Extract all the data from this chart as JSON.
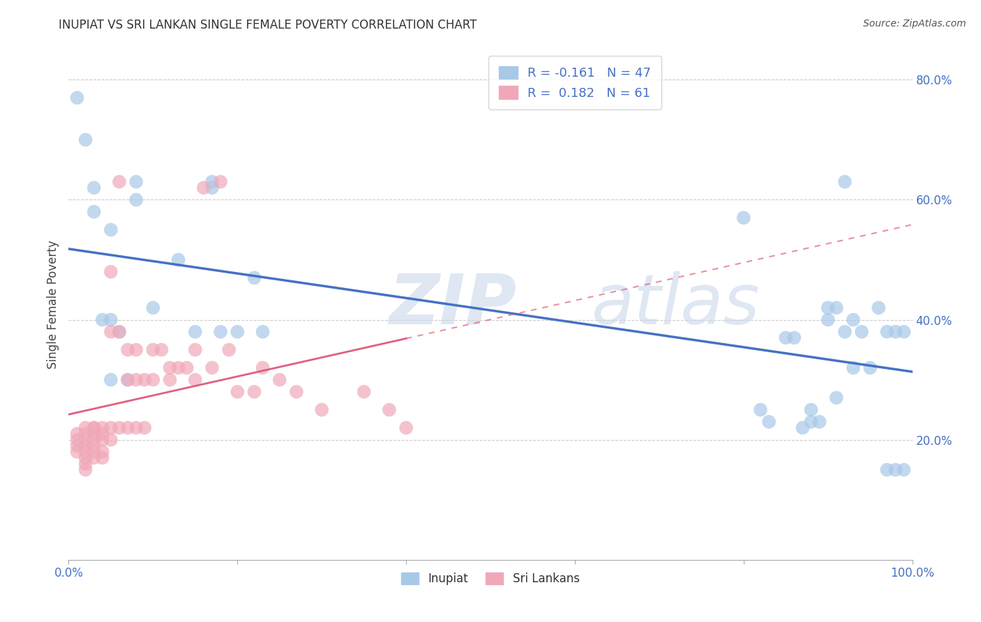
{
  "title": "INUPIAT VS SRI LANKAN SINGLE FEMALE POVERTY CORRELATION CHART",
  "source": "Source: ZipAtlas.com",
  "ylabel": "Single Female Poverty",
  "xlim": [
    0,
    1
  ],
  "ylim": [
    0,
    0.85
  ],
  "ytick_positions": [
    0.2,
    0.4,
    0.6,
    0.8
  ],
  "ytick_labels": [
    "20.0%",
    "40.0%",
    "60.0%",
    "80.0%"
  ],
  "xtick_positions": [
    0.0,
    0.2,
    0.4,
    0.6,
    0.8,
    1.0
  ],
  "xticklabels_show": [
    "0.0%",
    "100.0%"
  ],
  "inupiat_color": "#a8c8e8",
  "sri_lankan_color": "#f0a8b8",
  "inupiat_line_color": "#4472c4",
  "sri_lankan_line_color": "#e06080",
  "legend_label_color": "#4472c4",
  "legend_number_color": "#4472c4",
  "watermark_zip": "ZIP",
  "watermark_atlas": "atlas",
  "inupiat_x": [
    0.01,
    0.02,
    0.03,
    0.03,
    0.04,
    0.05,
    0.05,
    0.05,
    0.06,
    0.07,
    0.08,
    0.08,
    0.1,
    0.13,
    0.15,
    0.17,
    0.17,
    0.18,
    0.2,
    0.22,
    0.23,
    0.8,
    0.82,
    0.83,
    0.85,
    0.86,
    0.87,
    0.88,
    0.88,
    0.89,
    0.9,
    0.9,
    0.91,
    0.91,
    0.92,
    0.92,
    0.93,
    0.93,
    0.94,
    0.95,
    0.96,
    0.97,
    0.97,
    0.98,
    0.98,
    0.99,
    0.99
  ],
  "inupiat_y": [
    0.77,
    0.7,
    0.62,
    0.58,
    0.4,
    0.55,
    0.4,
    0.3,
    0.38,
    0.3,
    0.63,
    0.6,
    0.42,
    0.5,
    0.38,
    0.63,
    0.62,
    0.38,
    0.38,
    0.47,
    0.38,
    0.57,
    0.25,
    0.23,
    0.37,
    0.37,
    0.22,
    0.23,
    0.25,
    0.23,
    0.4,
    0.42,
    0.27,
    0.42,
    0.38,
    0.63,
    0.4,
    0.32,
    0.38,
    0.32,
    0.42,
    0.15,
    0.38,
    0.15,
    0.38,
    0.15,
    0.38
  ],
  "sri_lankan_x": [
    0.01,
    0.01,
    0.01,
    0.01,
    0.02,
    0.02,
    0.02,
    0.02,
    0.02,
    0.02,
    0.02,
    0.02,
    0.03,
    0.03,
    0.03,
    0.03,
    0.03,
    0.03,
    0.03,
    0.04,
    0.04,
    0.04,
    0.04,
    0.04,
    0.05,
    0.05,
    0.05,
    0.05,
    0.06,
    0.06,
    0.06,
    0.07,
    0.07,
    0.07,
    0.08,
    0.08,
    0.08,
    0.09,
    0.09,
    0.1,
    0.1,
    0.11,
    0.12,
    0.12,
    0.13,
    0.14,
    0.15,
    0.15,
    0.16,
    0.17,
    0.18,
    0.19,
    0.2,
    0.22,
    0.23,
    0.25,
    0.27,
    0.3,
    0.35,
    0.38,
    0.4
  ],
  "sri_lankan_y": [
    0.21,
    0.2,
    0.19,
    0.18,
    0.22,
    0.21,
    0.2,
    0.19,
    0.18,
    0.17,
    0.16,
    0.15,
    0.22,
    0.22,
    0.21,
    0.2,
    0.19,
    0.18,
    0.17,
    0.22,
    0.21,
    0.2,
    0.18,
    0.17,
    0.48,
    0.38,
    0.22,
    0.2,
    0.63,
    0.38,
    0.22,
    0.35,
    0.3,
    0.22,
    0.35,
    0.3,
    0.22,
    0.3,
    0.22,
    0.35,
    0.3,
    0.35,
    0.32,
    0.3,
    0.32,
    0.32,
    0.35,
    0.3,
    0.62,
    0.32,
    0.63,
    0.35,
    0.28,
    0.28,
    0.32,
    0.3,
    0.28,
    0.25,
    0.28,
    0.25,
    0.22
  ]
}
